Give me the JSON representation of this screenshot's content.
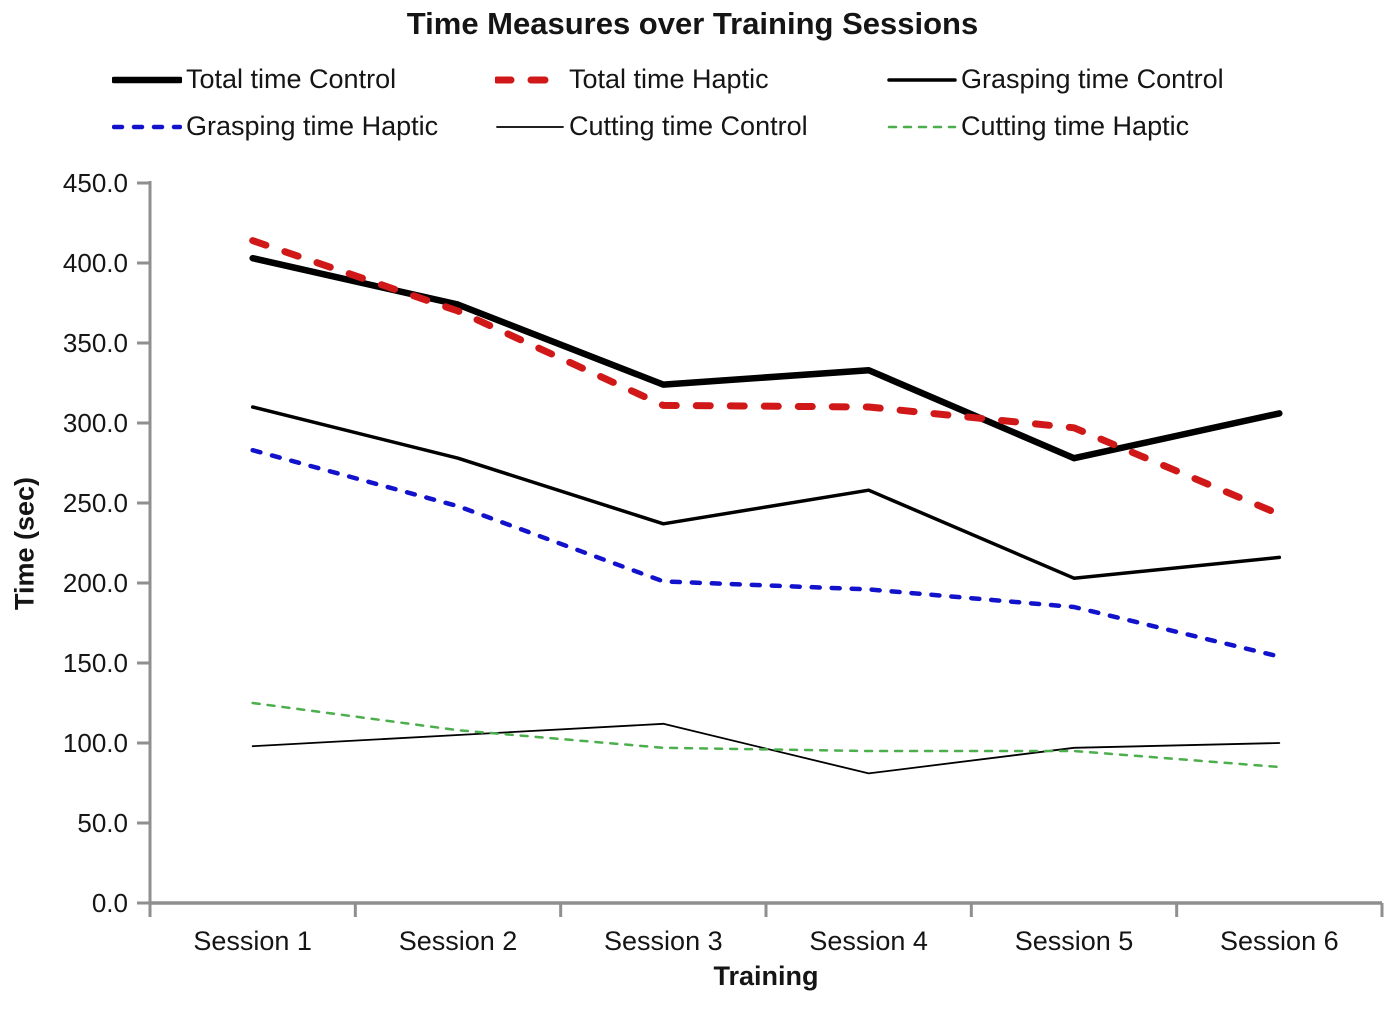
{
  "chart_data": {
    "type": "line",
    "title": "Time Measures over Training Sessions",
    "xlabel": "Training",
    "ylabel": "Time (sec)",
    "categories": [
      "Session 1",
      "Session 2",
      "Session 3",
      "Session 4",
      "Session 5",
      "Session 6"
    ],
    "ylim": [
      0,
      450
    ],
    "ytick_step": 50,
    "ytick_labels": [
      "450.0",
      "400.0",
      "350.0",
      "300.0",
      "250.0",
      "200.0",
      "150.0",
      "100.0",
      "50.0",
      "0.0"
    ],
    "grid": false,
    "legend_position": "top",
    "axis_color": "#8f8f8f",
    "text_color": "#151515",
    "series": [
      {
        "name": "Total time Control",
        "color": "#000000",
        "style": "solid",
        "width": 6.5,
        "dash": null,
        "values": [
          403,
          374,
          324,
          333,
          278,
          306
        ]
      },
      {
        "name": "Total time Haptic",
        "color": "#d01818",
        "style": "dashed",
        "width": 7,
        "dash": [
          14,
          20
        ],
        "values": [
          414,
          370,
          311,
          310,
          297,
          243
        ]
      },
      {
        "name": "Grasping time Control",
        "color": "#000000",
        "style": "solid",
        "width": 3.5,
        "dash": null,
        "values": [
          310,
          278,
          237,
          258,
          203,
          216
        ]
      },
      {
        "name": "Grasping time Haptic",
        "color": "#1212cc",
        "style": "dashed",
        "width": 4.5,
        "dash": [
          8,
          12
        ],
        "values": [
          283,
          248,
          201,
          196,
          185,
          154
        ]
      },
      {
        "name": "Cutting time Control",
        "color": "#000000",
        "style": "solid",
        "width": 1.8,
        "dash": null,
        "values": [
          98,
          105,
          112,
          81,
          97,
          100
        ]
      },
      {
        "name": "Cutting time Haptic",
        "color": "#4cae4c",
        "style": "dashed",
        "width": 2.5,
        "dash": [
          7,
          8
        ],
        "values": [
          125,
          108,
          97,
          95,
          95,
          85
        ]
      }
    ]
  }
}
